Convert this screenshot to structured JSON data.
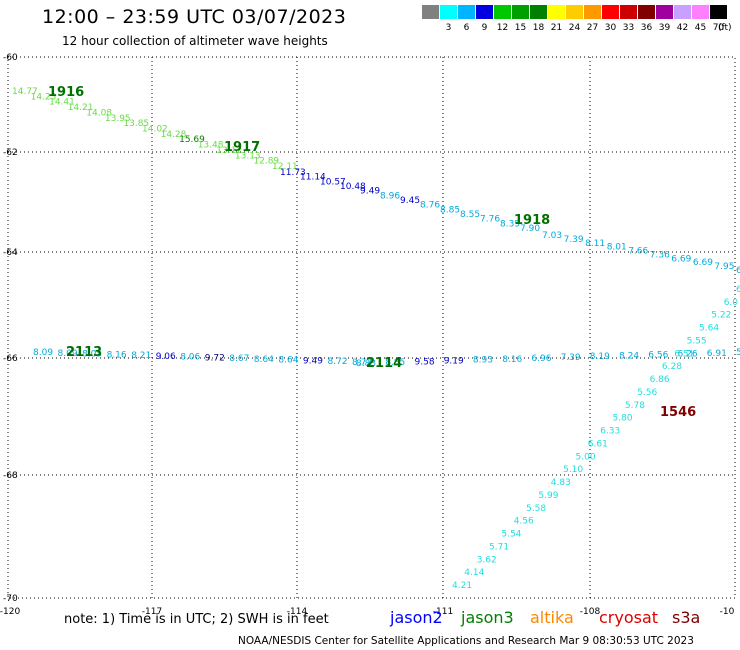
{
  "title": "12:00 – 23:59 UTC 03/07/2023",
  "subtitle": "12 hour collection of altimeter wave heights",
  "colorbar": {
    "units": "(ft)",
    "entries": [
      {
        "label": "",
        "color": "#808080"
      },
      {
        "label": "3",
        "color": "#00ffff"
      },
      {
        "label": "6",
        "color": "#00b4ff"
      },
      {
        "label": "9",
        "color": "#0000e0"
      },
      {
        "label": "12",
        "color": "#00c800"
      },
      {
        "label": "15",
        "color": "#00a000"
      },
      {
        "label": "18",
        "color": "#008000"
      },
      {
        "label": "21",
        "color": "#ffff00"
      },
      {
        "label": "24",
        "color": "#ffcc00"
      },
      {
        "label": "27",
        "color": "#ff9900"
      },
      {
        "label": "30",
        "color": "#ff0000"
      },
      {
        "label": "33",
        "color": "#cc0000"
      },
      {
        "label": "36",
        "color": "#800000"
      },
      {
        "label": "39",
        "color": "#a000a0"
      },
      {
        "label": "42",
        "color": "#c8a0ff"
      },
      {
        "label": "45",
        "color": "#ff80ff"
      },
      {
        "label": "70",
        "color": "#000000"
      }
    ]
  },
  "axes": {
    "lon_labels": [
      "-120",
      "-117",
      "-114",
      "-111",
      "-108",
      "-10"
    ],
    "lat_labels": [
      "-60",
      "-62",
      "-64",
      "-66",
      "-68",
      "-70"
    ]
  },
  "tracks": [
    {
      "name": "1916",
      "color": "#007000",
      "points": [
        [
          "14.77",
          "#66dd44"
        ],
        [
          "14.25",
          "#66dd44"
        ],
        [
          "14.41",
          "#66dd44"
        ],
        [
          "14.21",
          "#66dd44"
        ],
        [
          "14.08",
          "#66dd44"
        ],
        [
          "13.95",
          "#66dd44"
        ],
        [
          "13.85",
          "#66dd44"
        ],
        [
          "14.02",
          "#66dd44"
        ],
        [
          "14.28",
          "#66dd44"
        ],
        [
          "15.69",
          "#008000"
        ],
        [
          "13.48",
          "#66dd44"
        ],
        [
          "13.12",
          "#66dd44"
        ],
        [
          "13.13",
          "#66dd44"
        ],
        [
          "12.89",
          "#66dd44"
        ],
        [
          "12.11",
          "#66dd44"
        ]
      ]
    },
    {
      "name": "1917",
      "color": "#007000",
      "points": [
        [
          "11.73",
          "#0000cc"
        ],
        [
          "11.14",
          "#0000cc"
        ],
        [
          "10.57",
          "#0000cc"
        ],
        [
          "10.48",
          "#0000cc"
        ],
        [
          "9.49",
          "#0000cc"
        ],
        [
          "8.96",
          "#00aadd"
        ],
        [
          "9.45",
          "#0000cc"
        ],
        [
          "8.76",
          "#00aadd"
        ],
        [
          "8.85",
          "#00aadd"
        ],
        [
          "8.55",
          "#00aadd"
        ],
        [
          "7.76",
          "#00aadd"
        ],
        [
          "8.35",
          "#00aadd"
        ],
        [
          "7.90",
          "#00aadd"
        ]
      ]
    },
    {
      "name": "1918",
      "color": "#007000",
      "points": [
        [
          "7.03",
          "#00aadd"
        ],
        [
          "7.39",
          "#00aadd"
        ],
        [
          "8.11",
          "#00aadd"
        ],
        [
          "8.01",
          "#00aadd"
        ],
        [
          "7.66",
          "#00aadd"
        ],
        [
          "7.36",
          "#00aadd"
        ],
        [
          "6.69",
          "#00aadd"
        ],
        [
          "6.69",
          "#00aadd"
        ],
        [
          "7.95",
          "#00aadd"
        ],
        [
          "6.9",
          "#00aadd"
        ]
      ]
    },
    {
      "name": "2113",
      "color": "#007000",
      "points": [
        [
          "8.09",
          "#00aadd"
        ],
        [
          "8.09",
          "#00aadd"
        ],
        [
          "8.05",
          "#00aadd"
        ],
        [
          "8.16",
          "#00aadd"
        ],
        [
          "8.21",
          "#00aadd"
        ],
        [
          "9.06",
          "#0000cc"
        ],
        [
          "8.06",
          "#00aadd"
        ],
        [
          "9.72",
          "#000080"
        ],
        [
          "8.67",
          "#00aadd"
        ],
        [
          "8.64",
          "#00aadd"
        ],
        [
          "8.64",
          "#00aadd"
        ],
        [
          "9.49",
          "#0000cc"
        ],
        [
          "8.72",
          "#00aadd"
        ],
        [
          "8.72",
          "#00aadd"
        ]
      ]
    },
    {
      "name": "2114",
      "color": "#007000",
      "points": [
        [
          "8.83",
          "#00aadd"
        ],
        [
          "8.85",
          "#00aadd"
        ],
        [
          "9.58",
          "#0000cc"
        ],
        [
          "9.19",
          "#0000cc"
        ],
        [
          "8.93",
          "#00aadd"
        ],
        [
          "8.16",
          "#00aadd"
        ],
        [
          "6.96",
          "#00aadd"
        ],
        [
          "7.39",
          "#00aadd"
        ],
        [
          "8.19",
          "#00aadd"
        ],
        [
          "8.24",
          "#00aadd"
        ],
        [
          "6.56",
          "#00aadd"
        ],
        [
          "6.26",
          "#00aadd"
        ],
        [
          "6.91",
          "#00aadd"
        ],
        [
          "5.4",
          "#00aadd"
        ]
      ]
    },
    {
      "name": "1546",
      "color": "#800000",
      "points": [
        [
          "4.21",
          "#22dddd"
        ],
        [
          "4.14",
          "#22dddd"
        ],
        [
          "3.62",
          "#22dddd"
        ],
        [
          "5.71",
          "#22dddd"
        ],
        [
          "5.54",
          "#22dddd"
        ],
        [
          "4.56",
          "#22dddd"
        ],
        [
          "5.58",
          "#22dddd"
        ],
        [
          "5.99",
          "#22dddd"
        ],
        [
          "4.83",
          "#22dddd"
        ],
        [
          "5.10",
          "#22dddd"
        ],
        [
          "5.00",
          "#22dddd"
        ],
        [
          "6.61",
          "#22dddd"
        ],
        [
          "6.33",
          "#22dddd"
        ],
        [
          "5.80",
          "#22dddd"
        ],
        [
          "5.78",
          "#22dddd"
        ],
        [
          "5.56",
          "#22dddd"
        ],
        [
          "6.86",
          "#22dddd"
        ],
        [
          "6.28",
          "#22dddd"
        ],
        [
          "6.51",
          "#22dddd"
        ],
        [
          "5.55",
          "#22dddd"
        ],
        [
          "5.64",
          "#22dddd"
        ],
        [
          "5.22",
          "#22dddd"
        ],
        [
          "6.0",
          "#22dddd"
        ],
        [
          "6",
          "#22dddd"
        ]
      ]
    }
  ],
  "note": "note:  1) Time is in UTC;  2) SWH is in feet",
  "satellites": [
    {
      "label": "jason2",
      "color": "#0000ff"
    },
    {
      "label": "jason3",
      "color": "#008000"
    },
    {
      "label": "altika",
      "color": "#ff8800"
    },
    {
      "label": "cryosat",
      "color": "#dd0000"
    },
    {
      "label": "s3a",
      "color": "#800000"
    }
  ],
  "credit": "NOAA/NESDIS Center for Satellite Applications and Research    Mar  9 08:30:53 UTC 2023"
}
